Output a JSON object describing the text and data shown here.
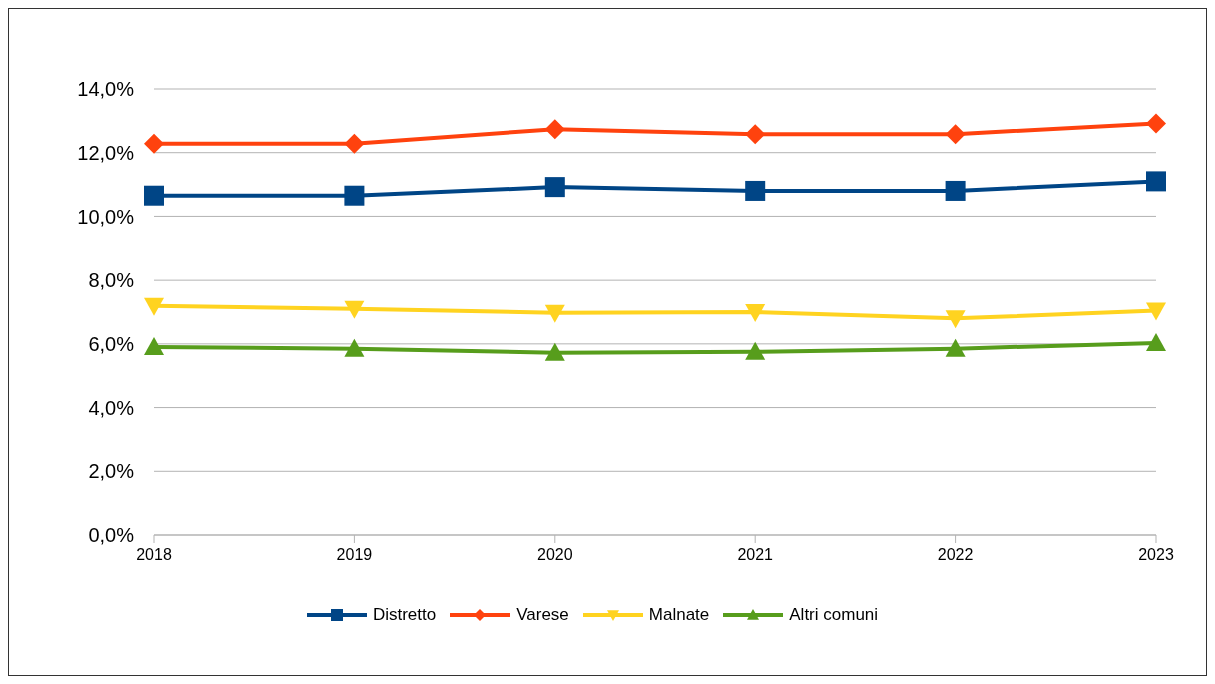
{
  "chart_data": {
    "type": "line",
    "categories": [
      "2018",
      "2019",
      "2020",
      "2021",
      "2022",
      "2023"
    ],
    "series": [
      {
        "name": "Distretto",
        "color": "#004586",
        "marker": "square",
        "values": [
          10.65,
          10.65,
          10.92,
          10.8,
          10.8,
          11.1
        ]
      },
      {
        "name": "Varese",
        "color": "#ff420e",
        "marker": "diamond",
        "values": [
          12.28,
          12.28,
          12.74,
          12.58,
          12.58,
          12.92
        ]
      },
      {
        "name": "Malnate",
        "color": "#ffd320",
        "marker": "triangle-down",
        "values": [
          7.2,
          7.1,
          6.98,
          7.0,
          6.8,
          7.05
        ]
      },
      {
        "name": "Altri comuni",
        "color": "#579d1c",
        "marker": "triangle",
        "values": [
          5.9,
          5.85,
          5.72,
          5.75,
          5.85,
          6.03
        ]
      }
    ],
    "ylim": [
      0,
      14
    ],
    "yticks": [
      {
        "value": 0,
        "label": "0,0%"
      },
      {
        "value": 2,
        "label": "2,0%"
      },
      {
        "value": 4,
        "label": "4,0%"
      },
      {
        "value": 6,
        "label": "6,0%"
      },
      {
        "value": 8,
        "label": "8,0%"
      },
      {
        "value": 10,
        "label": "10,0%"
      },
      {
        "value": 12,
        "label": "12,0%"
      },
      {
        "value": 14,
        "label": "14,0%"
      }
    ],
    "grid": "y",
    "legend": "bottom",
    "line_style": "solid"
  }
}
